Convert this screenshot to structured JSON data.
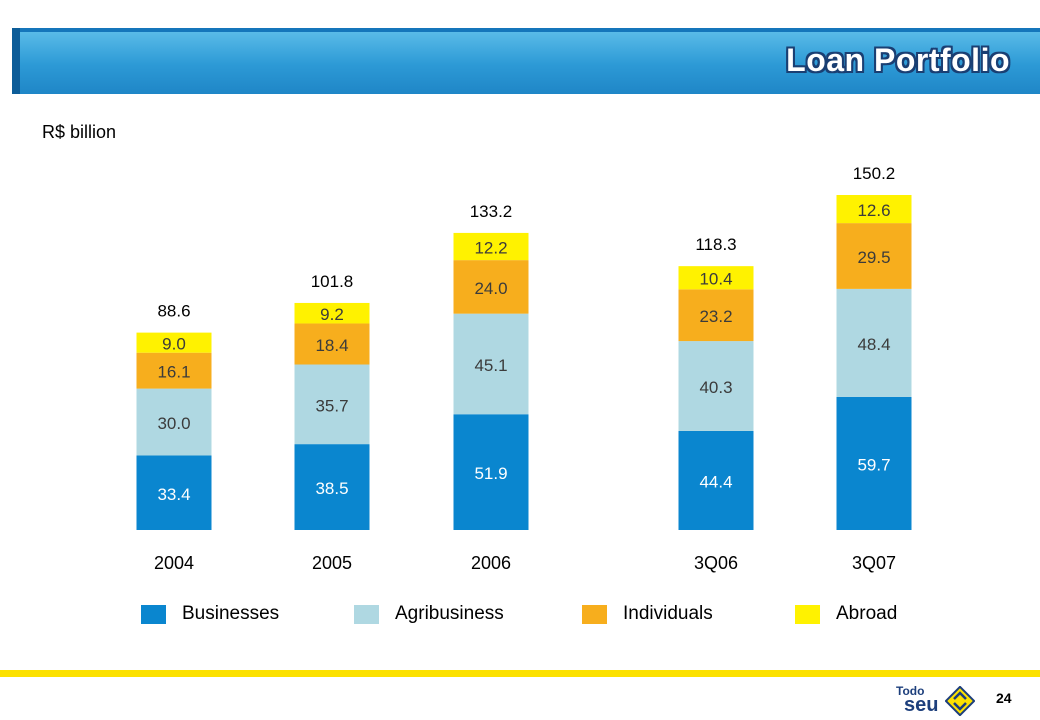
{
  "header": {
    "title": "Loan Portfolio"
  },
  "unit_label": "R$ billion",
  "legend": [
    {
      "label": "Businesses",
      "color": "#0a86cf"
    },
    {
      "label": "Agribusiness",
      "color": "#afd8e2"
    },
    {
      "label": "Individuals",
      "color": "#f7ae1d"
    },
    {
      "label": "Abroad",
      "color": "#fff200"
    }
  ],
  "chart_data": {
    "type": "bar",
    "stacked": true,
    "title": "Loan Portfolio",
    "ylabel": "R$ billion",
    "categories": [
      "2004",
      "2005",
      "2006",
      "3Q06",
      "3Q07"
    ],
    "series": [
      {
        "name": "Businesses",
        "color": "#0a86cf",
        "label_color": "#ffffff",
        "values": [
          33.4,
          38.5,
          51.9,
          44.4,
          59.7
        ]
      },
      {
        "name": "Agribusiness",
        "color": "#afd8e2",
        "label_color": "#3b3b3b",
        "values": [
          30.0,
          35.7,
          45.1,
          40.3,
          48.4
        ]
      },
      {
        "name": "Individuals",
        "color": "#f7ae1d",
        "label_color": "#3b3b3b",
        "values": [
          16.1,
          18.4,
          24.0,
          23.2,
          29.5
        ]
      },
      {
        "name": "Abroad",
        "color": "#fff200",
        "label_color": "#3b3b3b",
        "values": [
          9.0,
          9.2,
          12.2,
          10.4,
          12.6
        ]
      }
    ],
    "totals": [
      "88.6",
      "101.8",
      "133.2",
      "118.3",
      "150.2"
    ],
    "value_labels": [
      [
        "33.4",
        "38.5",
        "51.9",
        "44.4",
        "59.7"
      ],
      [
        "30.0",
        "35.7",
        "45.1",
        "40.3",
        "48.4"
      ],
      [
        "16.1",
        "18.4",
        "24.0",
        "23.2",
        "29.5"
      ],
      [
        "9.0",
        "9.2",
        "12.2",
        "10.4",
        "12.6"
      ]
    ],
    "ylim": [
      0,
      150.2
    ],
    "grid": false,
    "legend_position": "bottom"
  },
  "footer": {
    "logo_word_1": "Todo",
    "logo_word_2": "seu",
    "page_number": "24"
  }
}
